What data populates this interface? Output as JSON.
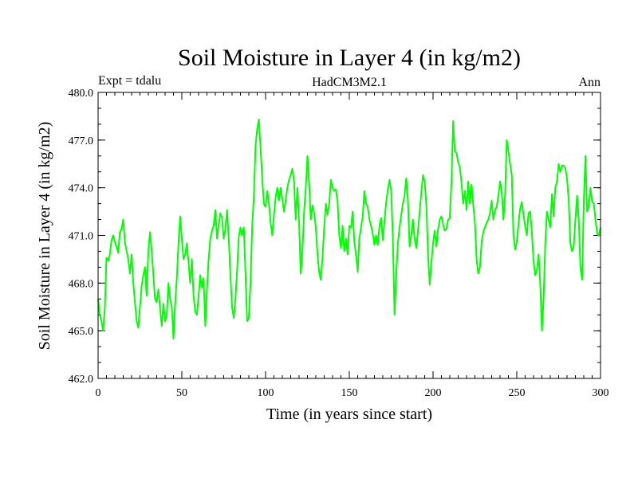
{
  "chart_data": {
    "type": "line",
    "title": "Soil Moisture in Layer 4 (in kg/m2)",
    "subtitle_left": "Expt = tdalu",
    "subtitle_center": "HadCM3M2.1",
    "subtitle_right": "Ann",
    "xlabel": "Time (in years since start)",
    "ylabel": "Soil Moisture in Layer 4 (in kg/m2)",
    "xlim": [
      0,
      300
    ],
    "ylim": [
      462,
      480
    ],
    "xticks": [
      0,
      50,
      100,
      150,
      200,
      250,
      300
    ],
    "xtick_labels": [
      "0",
      "50",
      "100",
      "150",
      "200",
      "250",
      "300"
    ],
    "yticks": [
      462,
      465,
      468,
      471,
      474,
      477,
      480
    ],
    "ytick_labels": [
      "462.0",
      "465.0",
      "468.0",
      "471.0",
      "474.0",
      "477.0",
      "480.0"
    ],
    "x_minor_step": 5,
    "y_minor_step": 1,
    "series": [
      {
        "name": "soil moisture layer 4",
        "color": "#00ff00",
        "x": [
          0,
          1,
          2,
          3,
          4,
          5,
          6,
          7,
          8,
          9,
          10,
          11,
          12,
          13,
          14,
          15,
          16,
          17,
          18,
          19,
          20,
          21,
          22,
          23,
          24,
          25,
          26,
          27,
          28,
          29,
          30,
          31,
          32,
          33,
          34,
          35,
          36,
          37,
          38,
          39,
          40,
          41,
          42,
          43,
          44,
          45,
          46,
          47,
          48,
          49,
          50,
          51,
          52,
          53,
          54,
          55,
          56,
          57,
          58,
          59,
          60,
          61,
          62,
          63,
          64,
          65,
          66,
          67,
          68,
          69,
          70,
          71,
          72,
          73,
          74,
          75,
          76,
          77,
          78,
          79,
          80,
          81,
          82,
          83,
          84,
          85,
          86,
          87,
          88,
          89,
          90,
          91,
          92,
          93,
          94,
          95,
          96,
          97,
          98,
          99,
          100,
          101,
          102,
          103,
          104,
          105,
          106,
          107,
          108,
          109,
          110,
          111,
          112,
          113,
          114,
          115,
          116,
          117,
          118,
          119,
          120,
          121,
          122,
          123,
          124,
          125,
          126,
          127,
          128,
          129,
          130,
          131,
          132,
          133,
          134,
          135,
          136,
          137,
          138,
          139,
          140,
          141,
          142,
          143,
          144,
          145,
          146,
          147,
          148,
          149,
          150,
          151,
          152,
          153,
          154,
          155,
          156,
          157,
          158,
          159,
          160,
          161,
          162,
          163,
          164,
          165,
          166,
          167,
          168,
          169,
          170,
          171,
          172,
          173,
          174,
          175,
          176,
          177,
          178,
          179,
          180,
          181,
          182,
          183,
          184,
          185,
          186,
          187,
          188,
          189,
          190,
          191,
          192,
          193,
          194,
          195,
          196,
          197,
          198,
          199,
          200,
          201,
          202,
          203,
          204,
          205,
          206,
          207,
          208,
          209,
          210,
          211,
          212,
          213,
          214,
          215,
          216,
          217,
          218,
          219,
          220,
          221,
          222,
          223,
          224,
          225,
          226,
          227,
          228,
          229,
          230,
          231,
          232,
          233,
          234,
          235,
          236,
          237,
          238,
          239,
          240,
          241,
          242,
          243,
          244,
          245,
          246,
          247,
          248,
          249,
          250,
          251,
          252,
          253,
          254,
          255,
          256,
          257,
          258,
          259,
          260,
          261,
          262,
          263,
          264,
          265,
          266,
          267,
          268,
          269,
          270,
          271,
          272,
          273,
          274,
          275,
          276,
          277,
          278,
          279,
          280,
          281,
          282,
          283,
          284,
          285,
          286,
          287,
          288,
          289,
          290,
          291,
          292,
          293,
          294,
          295,
          296,
          297,
          298,
          299,
          300
        ],
        "values": [
          467.0,
          466.0,
          465.6,
          465.0,
          466.4,
          469.6,
          469.4,
          469.8,
          470.7,
          471.0,
          470.6,
          470.3,
          469.9,
          471.2,
          471.4,
          472.0,
          470.6,
          470.0,
          469.5,
          468.6,
          469.8,
          468.0,
          466.8,
          465.6,
          465.2,
          466.5,
          467.8,
          468.5,
          469.0,
          467.2,
          470.0,
          471.2,
          470.0,
          468.5,
          467.0,
          466.8,
          467.6,
          466.4,
          465.3,
          466.7,
          465.6,
          466.0,
          468.0,
          467.0,
          466.5,
          464.5,
          466.7,
          468.3,
          470.5,
          472.2,
          470.8,
          469.5,
          469.8,
          470.5,
          469.3,
          468.0,
          469.5,
          467.2,
          466.2,
          466.0,
          467.2,
          468.5,
          467.7,
          468.3,
          465.3,
          467.6,
          469.5,
          470.8,
          471.3,
          471.6,
          472.6,
          470.8,
          471.7,
          472.4,
          472.1,
          470.8,
          471.4,
          472.6,
          470.8,
          468.5,
          466.5,
          465.8,
          467.0,
          468.8,
          470.9,
          471.5,
          471.0,
          471.5,
          468.6,
          465.6,
          465.8,
          468.0,
          471.6,
          473.5,
          476.6,
          477.7,
          478.3,
          476.5,
          474.6,
          473.0,
          472.8,
          473.8,
          473.0,
          471.8,
          471.0,
          472.3,
          473.4,
          474.0,
          473.2,
          474.0,
          473.3,
          472.5,
          473.2,
          474.0,
          474.5,
          474.8,
          475.2,
          474.4,
          472.0,
          474.0,
          471.8,
          468.6,
          470.0,
          472.5,
          474.0,
          476.0,
          474.3,
          472.0,
          472.9,
          472.4,
          471.5,
          469.8,
          468.7,
          468.2,
          469.6,
          471.5,
          473.0,
          472.3,
          473.0,
          474.5,
          474.0,
          473.8,
          473.9,
          473.1,
          471.0,
          470.2,
          471.6,
          470.0,
          470.8,
          469.8,
          471.6,
          471.5,
          472.5,
          470.6,
          469.8,
          468.7,
          470.8,
          471.5,
          472.2,
          473.8,
          473.0,
          472.8,
          472.0,
          471.6,
          471.1,
          470.4,
          471.0,
          470.4,
          471.6,
          472.1,
          470.7,
          471.9,
          473.1,
          473.9,
          474.5,
          473.8,
          470.8,
          466.0,
          468.5,
          470.5,
          471.5,
          472.3,
          473.0,
          473.5,
          474.6,
          473.2,
          470.3,
          471.0,
          472.0,
          470.8,
          470.2,
          471.3,
          472.5,
          473.7,
          474.8,
          474.4,
          472.9,
          469.8,
          467.9,
          469.3,
          470.5,
          471.3,
          470.3,
          471.4,
          472.0,
          472.2,
          471.7,
          471.3,
          471.4,
          472.0,
          472.1,
          474.4,
          478.2,
          476.3,
          476.2,
          475.6,
          475.3,
          474.3,
          473.0,
          473.8,
          472.6,
          474.4,
          473.0,
          474.2,
          472.9,
          471.8,
          469.5,
          468.6,
          469.0,
          470.6,
          471.2,
          471.5,
          471.8,
          472.0,
          472.4,
          473.2,
          472.0,
          472.6,
          472.8,
          473.5,
          474.4,
          473.8,
          472.0,
          473.5,
          477.0,
          476.3,
          475.5,
          474.8,
          471.0,
          470.1,
          470.6,
          471.7,
          472.7,
          473.1,
          472.3,
          471.6,
          471.0,
          472.4,
          472.5,
          471.2,
          469.4,
          468.5,
          468.8,
          469.8,
          468.0,
          465.0,
          467.0,
          470.5,
          472.5,
          472.0,
          471.5,
          473.6,
          472.2,
          474.0,
          474.4,
          475.5,
          475.0,
          475.4,
          475.4,
          475.2,
          474.6,
          473.2,
          470.5,
          470.0,
          470.3,
          472.0,
          473.5,
          472.0,
          469.0,
          468.2,
          473.1,
          476.0,
          472.5,
          472.8,
          474.0,
          473.1,
          473.0,
          472.0,
          471.1,
          471.0,
          471.5
        ]
      }
    ]
  }
}
